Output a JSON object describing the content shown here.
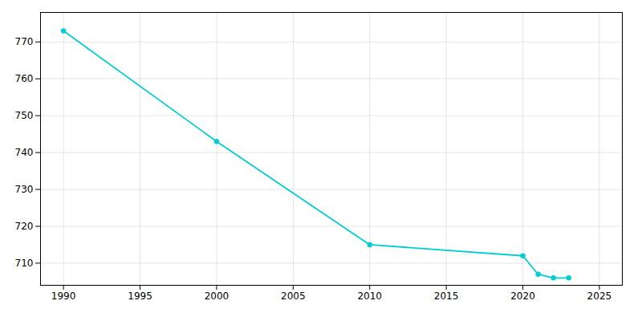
{
  "chart_data": {
    "type": "line",
    "x": [
      1990,
      2000,
      2010,
      2020,
      2021,
      2022,
      2023
    ],
    "values": [
      773,
      743,
      715,
      712,
      707,
      706,
      706
    ],
    "color": "#00CED1",
    "marker": "circle",
    "xlim": [
      1988.5,
      2026.5
    ],
    "ylim": [
      704,
      778
    ],
    "xticks": [
      1990,
      1995,
      2000,
      2005,
      2010,
      2015,
      2020,
      2025
    ],
    "yticks": [
      710,
      720,
      730,
      740,
      750,
      760,
      770
    ],
    "grid": true
  }
}
